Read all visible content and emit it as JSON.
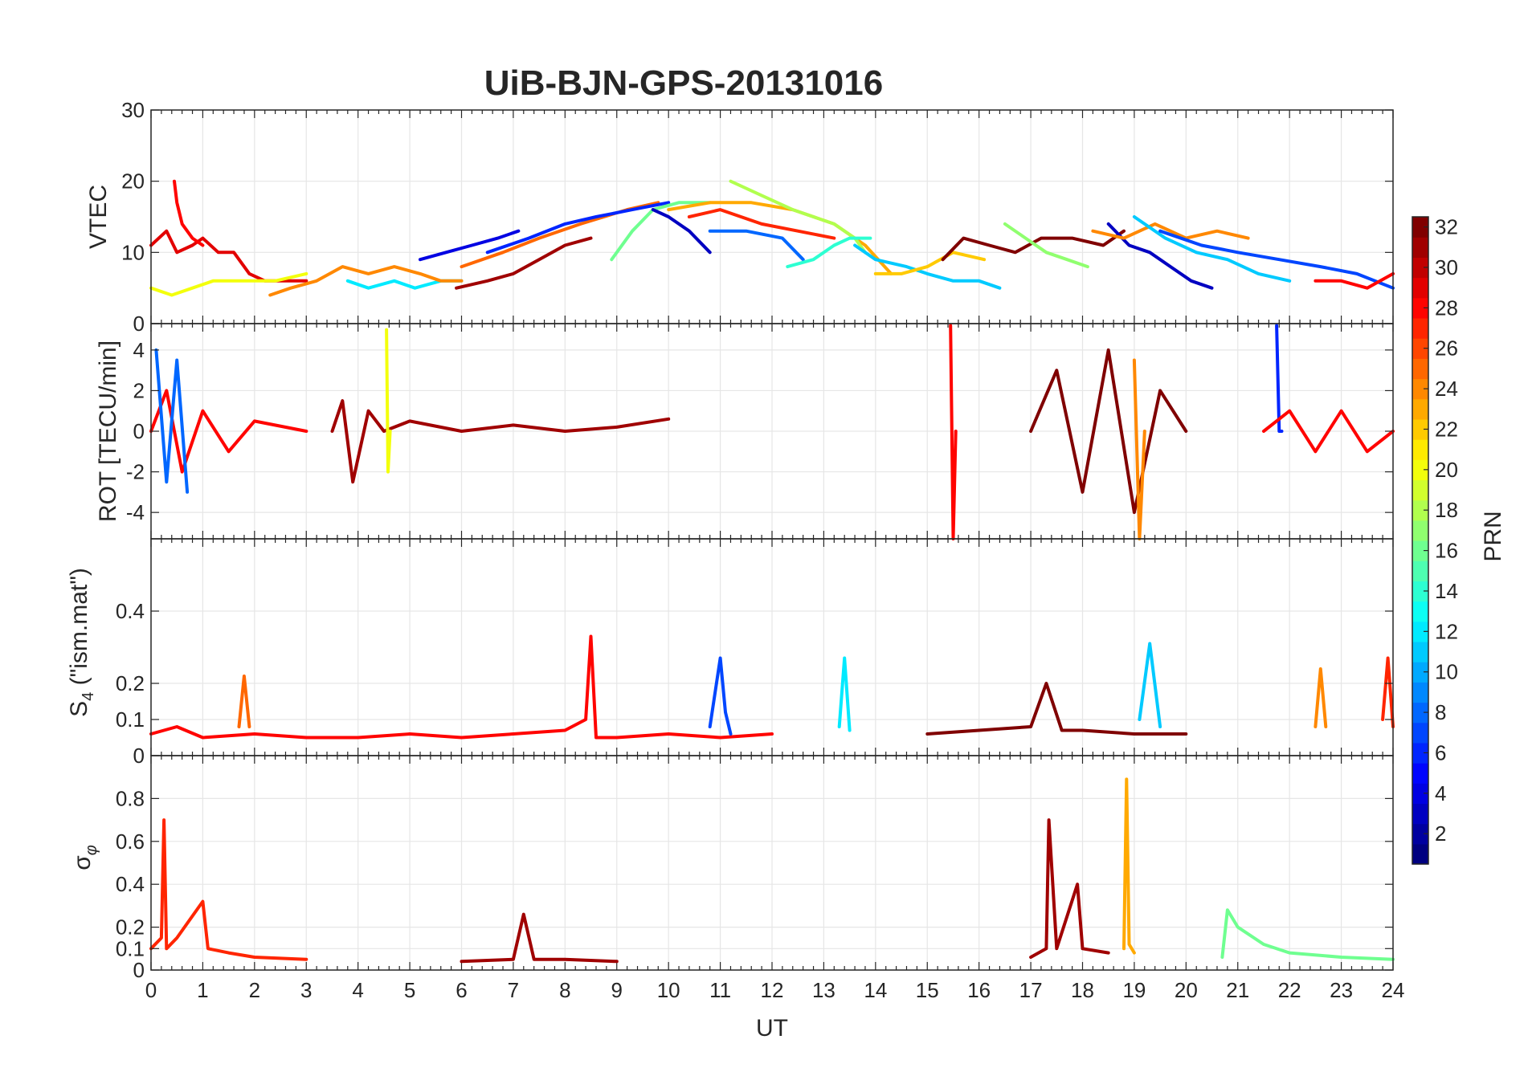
{
  "chart_data": [
    {
      "type": "line",
      "panel": "vtec",
      "title": "UiB-BJN-GPS-20131016",
      "xlabel": "UT",
      "ylabel": "VTEC",
      "xlim": [
        0,
        24
      ],
      "ylim": [
        0,
        30
      ],
      "yticks": [
        "0",
        "10",
        "20",
        "30"
      ],
      "grid": true,
      "series": [
        {
          "prn": 29,
          "x": [
            0,
            0.3,
            0.5,
            0.8,
            1.0,
            1.3,
            1.6,
            1.9,
            2.2,
            2.6,
            3.0
          ],
          "y": [
            11,
            13,
            10,
            11,
            12,
            10,
            10,
            7,
            6,
            6,
            6
          ]
        },
        {
          "prn": 28,
          "x": [
            0.45,
            0.5,
            0.6,
            0.8,
            1.0
          ],
          "y": [
            20,
            17,
            14,
            12,
            11
          ]
        },
        {
          "prn": 20,
          "x": [
            0,
            0.4,
            0.8,
            1.2,
            1.8,
            2.4,
            3.0
          ],
          "y": [
            5,
            4,
            5,
            6,
            6,
            6,
            7
          ]
        },
        {
          "prn": 12,
          "x": [
            3.8,
            4.2,
            4.7,
            5.1,
            5.6,
            6.0
          ],
          "y": [
            6,
            5,
            6,
            5,
            6,
            6
          ]
        },
        {
          "prn": 24,
          "x": [
            2.3,
            2.7,
            3.2,
            3.7,
            4.2,
            4.7,
            5.2,
            5.6,
            6.0
          ],
          "y": [
            4,
            5,
            6,
            8,
            7,
            8,
            7,
            6,
            6
          ]
        },
        {
          "prn": 4,
          "x": [
            5.2,
            5.7,
            6.2,
            6.7,
            7.1
          ],
          "y": [
            9,
            10,
            11,
            12,
            13
          ]
        },
        {
          "prn": 31,
          "x": [
            5.9,
            6.5,
            7.0,
            7.5,
            8.0,
            8.5
          ],
          "y": [
            5,
            6,
            7,
            9,
            11,
            12
          ]
        },
        {
          "prn": 25,
          "x": [
            6.0,
            6.8,
            7.5,
            8.3,
            9.2,
            9.8
          ],
          "y": [
            8,
            10,
            12,
            14,
            16,
            17
          ]
        },
        {
          "prn": 6,
          "x": [
            6.5,
            7.3,
            8.0,
            8.6,
            9.3,
            10.0
          ],
          "y": [
            10,
            12,
            14,
            15,
            16,
            17
          ]
        },
        {
          "prn": 16,
          "x": [
            8.9,
            9.3,
            9.7,
            10.2,
            10.8
          ],
          "y": [
            9,
            13,
            16,
            17,
            17
          ]
        },
        {
          "prn": 3,
          "x": [
            9.7,
            10.0,
            10.4,
            10.8
          ],
          "y": [
            16,
            15,
            13,
            10
          ]
        },
        {
          "prn": 23,
          "x": [
            10.0,
            10.8,
            11.6,
            12.4,
            13.2,
            13.8,
            14.3
          ],
          "y": [
            16,
            17,
            17,
            16,
            14,
            11,
            7
          ]
        },
        {
          "prn": 18,
          "x": [
            11.2,
            11.8,
            12.4,
            13.2,
            13.6,
            13.8
          ],
          "y": [
            20,
            18,
            16,
            14,
            12,
            10
          ]
        },
        {
          "prn": 27,
          "x": [
            10.4,
            11.0,
            11.8,
            12.5,
            13.2
          ],
          "y": [
            15,
            16,
            14,
            13,
            12
          ]
        },
        {
          "prn": 8,
          "x": [
            10.8,
            11.5,
            12.2,
            12.6
          ],
          "y": [
            13,
            13,
            12,
            9
          ]
        },
        {
          "prn": 14,
          "x": [
            12.3,
            12.8,
            13.2,
            13.5,
            13.9
          ],
          "y": [
            8,
            9,
            11,
            12,
            12
          ]
        },
        {
          "prn": 11,
          "x": [
            13.6,
            14.0,
            14.6,
            15.0,
            15.5,
            16.0,
            16.4
          ],
          "y": [
            11,
            9,
            8,
            7,
            6,
            6,
            5
          ]
        },
        {
          "prn": 22,
          "x": [
            14.0,
            14.5,
            15.0,
            15.5,
            16.1
          ],
          "y": [
            7,
            7,
            8,
            10,
            9
          ]
        },
        {
          "prn": 32,
          "x": [
            15.3,
            15.7,
            16.2,
            16.7,
            17.2,
            17.8,
            18.4,
            18.8
          ],
          "y": [
            9,
            12,
            11,
            10,
            12,
            12,
            11,
            13
          ]
        },
        {
          "prn": 17,
          "x": [
            16.5,
            16.9,
            17.3,
            17.7,
            18.1
          ],
          "y": [
            14,
            12,
            10,
            9,
            8
          ]
        },
        {
          "prn": 3,
          "x": [
            18.5,
            18.9,
            19.3,
            19.7,
            20.1,
            20.5
          ],
          "y": [
            14,
            11,
            10,
            8,
            6,
            5
          ]
        },
        {
          "prn": 24,
          "x": [
            18.2,
            18.8,
            19.4,
            20.0,
            20.6,
            21.2
          ],
          "y": [
            13,
            12,
            14,
            12,
            13,
            12
          ]
        },
        {
          "prn": 11,
          "x": [
            19.0,
            19.6,
            20.2,
            20.8,
            21.4,
            22.0
          ],
          "y": [
            15,
            12,
            10,
            9,
            7,
            6
          ]
        },
        {
          "prn": 7,
          "x": [
            19.5,
            20.3,
            21.0,
            21.8,
            22.6,
            23.3,
            24.0
          ],
          "y": [
            13,
            11,
            10,
            9,
            8,
            7,
            5
          ]
        },
        {
          "prn": 28,
          "x": [
            22.5,
            23.0,
            23.5,
            24.0
          ],
          "y": [
            6,
            6,
            5,
            7
          ]
        }
      ]
    },
    {
      "type": "line",
      "panel": "rot",
      "ylabel": "ROT [TECU/min]",
      "xlim": [
        0,
        24
      ],
      "ylim": [
        -5.3,
        5.3
      ],
      "yticks": [
        "-4",
        "-2",
        "0",
        "2",
        "4"
      ],
      "grid": true,
      "series": [
        {
          "prn": 28,
          "x": [
            0,
            0.3,
            0.6,
            1.0,
            1.5,
            2.0,
            3.0
          ],
          "y": [
            0,
            2,
            -2,
            1,
            -1,
            0.5,
            0
          ]
        },
        {
          "prn": 8,
          "x": [
            0.1,
            0.3,
            0.5,
            0.7
          ],
          "y": [
            4,
            -2.5,
            3.5,
            -3
          ]
        },
        {
          "prn": 31,
          "x": [
            3.5,
            3.7,
            3.9,
            4.2,
            4.5,
            5,
            6,
            7,
            8,
            9,
            10
          ],
          "y": [
            0,
            1.5,
            -2.5,
            1,
            0,
            0.5,
            0,
            0.3,
            0,
            0.2,
            0.6
          ]
        },
        {
          "prn": 20,
          "x": [
            4.55,
            4.58,
            4.62
          ],
          "y": [
            5,
            -2,
            0
          ]
        },
        {
          "prn": 28,
          "x": [
            15.45,
            15.5,
            15.55
          ],
          "y": [
            5.2,
            -5.3,
            0
          ]
        },
        {
          "prn": 32,
          "x": [
            17,
            17.5,
            18,
            18.5,
            19,
            19.5,
            20
          ],
          "y": [
            0,
            3,
            -3,
            4,
            -4,
            2,
            0
          ]
        },
        {
          "prn": 24,
          "x": [
            19.0,
            19.1,
            19.2
          ],
          "y": [
            3.5,
            -5.3,
            0
          ]
        },
        {
          "prn": 6,
          "x": [
            21.75,
            21.8,
            21.85
          ],
          "y": [
            5.2,
            0,
            0
          ]
        },
        {
          "prn": 28,
          "x": [
            21.5,
            22,
            22.5,
            23,
            23.5,
            24
          ],
          "y": [
            0,
            1,
            -1,
            1,
            -1,
            0
          ]
        }
      ]
    },
    {
      "type": "line",
      "panel": "s4",
      "ylabel": "S4 (\"ism.mat\")",
      "xlim": [
        0,
        24
      ],
      "ylim": [
        0,
        0.6
      ],
      "yticks": [
        "0",
        "0.1",
        "0.2",
        "0.4"
      ],
      "grid": true,
      "series": [
        {
          "prn": 28,
          "x": [
            0,
            0.5,
            1,
            2,
            3,
            4,
            5,
            6,
            7,
            8,
            8.4,
            8.5,
            8.6,
            9,
            10,
            11,
            12
          ],
          "y": [
            0.06,
            0.08,
            0.05,
            0.06,
            0.05,
            0.05,
            0.06,
            0.05,
            0.06,
            0.07,
            0.1,
            0.33,
            0.05,
            0.05,
            0.06,
            0.05,
            0.06
          ]
        },
        {
          "prn": 25,
          "x": [
            1.7,
            1.8,
            1.9
          ],
          "y": [
            0.08,
            0.22,
            0.08
          ]
        },
        {
          "prn": 7,
          "x": [
            10.8,
            11.0,
            11.1,
            11.2
          ],
          "y": [
            0.08,
            0.27,
            0.12,
            0.06
          ]
        },
        {
          "prn": 12,
          "x": [
            13.3,
            13.4,
            13.5
          ],
          "y": [
            0.08,
            0.27,
            0.07
          ]
        },
        {
          "prn": 32,
          "x": [
            15,
            16,
            17,
            17.3,
            17.6,
            18,
            19,
            20
          ],
          "y": [
            0.06,
            0.07,
            0.08,
            0.2,
            0.07,
            0.07,
            0.06,
            0.06
          ]
        },
        {
          "prn": 11,
          "x": [
            19.1,
            19.3,
            19.5
          ],
          "y": [
            0.1,
            0.31,
            0.08
          ]
        },
        {
          "prn": 24,
          "x": [
            22.5,
            22.6,
            22.7
          ],
          "y": [
            0.08,
            0.24,
            0.08
          ]
        },
        {
          "prn": 27,
          "x": [
            23.8,
            23.9,
            24.0
          ],
          "y": [
            0.1,
            0.27,
            0.08
          ]
        }
      ]
    },
    {
      "type": "line",
      "panel": "sigma_phi",
      "ylabel": "σφ",
      "xlabel": "UT",
      "xlim": [
        0,
        24
      ],
      "ylim": [
        0,
        1.0
      ],
      "yticks": [
        "0",
        "0.1",
        "0.2",
        "0.4",
        "0.6",
        "0.8"
      ],
      "xticks": [
        "0",
        "1",
        "2",
        "3",
        "4",
        "5",
        "6",
        "7",
        "8",
        "9",
        "10",
        "11",
        "12",
        "13",
        "14",
        "15",
        "16",
        "17",
        "18",
        "19",
        "20",
        "21",
        "22",
        "23",
        "24"
      ],
      "grid": true,
      "series": [
        {
          "prn": 27,
          "x": [
            0,
            0.2,
            0.25,
            0.3,
            0.5,
            1.0,
            1.1,
            1.5,
            2,
            3
          ],
          "y": [
            0.1,
            0.15,
            0.7,
            0.1,
            0.15,
            0.32,
            0.1,
            0.08,
            0.06,
            0.05
          ]
        },
        {
          "prn": 31,
          "x": [
            6,
            7,
            7.2,
            7.4,
            8,
            9
          ],
          "y": [
            0.04,
            0.05,
            0.26,
            0.05,
            0.05,
            0.04
          ]
        },
        {
          "prn": 31,
          "x": [
            17,
            17.3,
            17.35,
            17.5,
            17.9,
            18,
            18.5
          ],
          "y": [
            0.06,
            0.1,
            0.7,
            0.1,
            0.4,
            0.1,
            0.08
          ]
        },
        {
          "prn": 23,
          "x": [
            18.8,
            18.85,
            18.9,
            19.0
          ],
          "y": [
            0.1,
            0.89,
            0.12,
            0.08
          ]
        },
        {
          "prn": 16,
          "x": [
            20.7,
            20.8,
            21,
            21.5,
            22,
            23,
            24
          ],
          "y": [
            0.06,
            0.28,
            0.2,
            0.12,
            0.08,
            0.06,
            0.05
          ]
        }
      ]
    }
  ],
  "colorbar": {
    "label": "PRN",
    "range": [
      1,
      32
    ],
    "ticks": [
      "2",
      "4",
      "6",
      "8",
      "10",
      "12",
      "14",
      "16",
      "18",
      "20",
      "22",
      "24",
      "26",
      "28",
      "30",
      "32"
    ],
    "colormap": "jet"
  },
  "labels": {
    "title": "UiB-BJN-GPS-20131016",
    "xlabel": "UT",
    "vtec_ylabel": "VTEC",
    "rot_ylabel": "ROT [TECU/min]",
    "s4_ylabel_main": "S",
    "s4_ylabel_sub": "4",
    "s4_ylabel_rest": " (\"ism.mat\")",
    "sigma_main": "σ",
    "sigma_sub": "φ",
    "colorbar_label": "PRN"
  }
}
